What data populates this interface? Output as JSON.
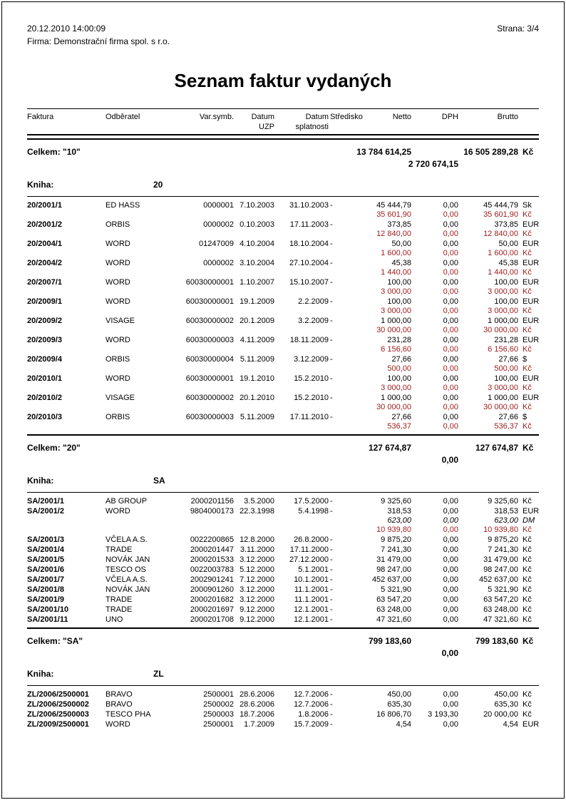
{
  "meta": {
    "datetime": "20.12.2010  14:00:09",
    "company": "Firma: Demonstrační firma spol. s r.o.",
    "page_label": "Strana: 3/4"
  },
  "title": "Seznam faktur vydaných",
  "colors": {
    "accent_red": "#9E1B1B",
    "text": "#000000"
  },
  "table": {
    "headers": {
      "faktura": "Faktura",
      "odberatel": "Odběratel",
      "varsymb": "Var.symb.",
      "datum1": "Datum",
      "datum1b": "UZP",
      "datum2": "Datum",
      "datum2b": "splatnosti",
      "stredisko": "Středisko",
      "netto": "Netto",
      "dph": "DPH",
      "brutto": "Brutto"
    },
    "blocks": [
      {
        "type": "celkem",
        "label": "Celkem:",
        "book": "\"10\"",
        "netto": "13 784 614,25",
        "brutto": "16 505 289,28",
        "curr": "Kč",
        "line2": "2 720 674,15",
        "rule_above": false
      },
      {
        "type": "kniha",
        "label": "Kniha:",
        "value": "20"
      },
      {
        "type": "rows",
        "rows": [
          {
            "faktura": "20/2001/1",
            "odberatel": "ED HASS",
            "varsymb": "0000001",
            "uzp": "7.10.2003",
            "splatnost": "31.10.2003",
            "stredisko": "-",
            "lines": [
              {
                "netto": "45 444,79",
                "dph": "0,00",
                "brutto": "45 444,79",
                "curr": "Sk",
                "style": "fx"
              },
              {
                "netto": "35 601,90",
                "dph": "0,00",
                "brutto": "35 601,90",
                "curr": "Kč",
                "style": "red"
              }
            ]
          },
          {
            "faktura": "20/2001/2",
            "odberatel": "ORBIS",
            "varsymb": "0000002",
            "uzp": "0.10.2003",
            "splatnost": "17.11.2003",
            "stredisko": "-",
            "lines": [
              {
                "netto": "373,85",
                "dph": "0,00",
                "brutto": "373,85",
                "curr": "EUR",
                "style": "fx"
              },
              {
                "netto": "12 840,00",
                "dph": "0,00",
                "brutto": "12 840,00",
                "curr": "Kč",
                "style": "red"
              }
            ]
          },
          {
            "faktura": "20/2004/1",
            "odberatel": "WORD",
            "varsymb": "01247009",
            "uzp": "4.10.2004",
            "splatnost": "18.10.2004",
            "stredisko": "-",
            "lines": [
              {
                "netto": "50,00",
                "dph": "0,00",
                "brutto": "50,00",
                "curr": "EUR",
                "style": "fx"
              },
              {
                "netto": "1 600,00",
                "dph": "0,00",
                "brutto": "1 600,00",
                "curr": "Kč",
                "style": "red"
              }
            ]
          },
          {
            "faktura": "20/2004/2",
            "odberatel": "WORD",
            "varsymb": "0000002",
            "uzp": "3.10.2004",
            "splatnost": "27.10.2004",
            "stredisko": "-",
            "lines": [
              {
                "netto": "45,38",
                "dph": "0,00",
                "brutto": "45,38",
                "curr": "EUR",
                "style": "fx"
              },
              {
                "netto": "1 440,00",
                "dph": "0,00",
                "brutto": "1 440,00",
                "curr": "Kč",
                "style": "red"
              }
            ]
          },
          {
            "faktura": "20/2007/1",
            "odberatel": "WORD",
            "varsymb": "60030000001",
            "uzp": "1.10.2007",
            "splatnost": "15.10.2007",
            "stredisko": "-",
            "lines": [
              {
                "netto": "100,00",
                "dph": "0,00",
                "brutto": "100,00",
                "curr": "EUR",
                "style": "fx"
              },
              {
                "netto": "3 000,00",
                "dph": "0,00",
                "brutto": "3 000,00",
                "curr": "Kč",
                "style": "red"
              }
            ]
          },
          {
            "faktura": "20/2009/1",
            "odberatel": "WORD",
            "varsymb": "60030000001",
            "uzp": "19.1.2009",
            "splatnost": "2.2.2009",
            "stredisko": "-",
            "lines": [
              {
                "netto": "100,00",
                "dph": "0,00",
                "brutto": "100,00",
                "curr": "EUR",
                "style": "fx"
              },
              {
                "netto": "3 000,00",
                "dph": "0,00",
                "brutto": "3 000,00",
                "curr": "Kč",
                "style": "red"
              }
            ]
          },
          {
            "faktura": "20/2009/2",
            "odberatel": "VISAGE",
            "varsymb": "60030000002",
            "uzp": "20.1.2009",
            "splatnost": "3.2.2009",
            "stredisko": "-",
            "lines": [
              {
                "netto": "1 000,00",
                "dph": "0,00",
                "brutto": "1 000,00",
                "curr": "EUR",
                "style": "fx"
              },
              {
                "netto": "30 000,00",
                "dph": "0,00",
                "brutto": "30 000,00",
                "curr": "Kč",
                "style": "red"
              }
            ]
          },
          {
            "faktura": "20/2009/3",
            "odberatel": "WORD",
            "varsymb": "60030000003",
            "uzp": "4.11.2009",
            "splatnost": "18.11.2009",
            "stredisko": "-",
            "lines": [
              {
                "netto": "231,28",
                "dph": "0,00",
                "brutto": "231,28",
                "curr": "EUR",
                "style": "fx"
              },
              {
                "netto": "6 156,60",
                "dph": "0,00",
                "brutto": "6 156,60",
                "curr": "Kč",
                "style": "red"
              }
            ]
          },
          {
            "faktura": "20/2009/4",
            "odberatel": "ORBIS",
            "varsymb": "60030000004",
            "uzp": "5.11.2009",
            "splatnost": "3.12.2009",
            "stredisko": "-",
            "lines": [
              {
                "netto": "27,66",
                "dph": "0,00",
                "brutto": "27,66",
                "curr": "$",
                "style": "fx"
              },
              {
                "netto": "500,00",
                "dph": "0,00",
                "brutto": "500,00",
                "curr": "Kč",
                "style": "red"
              }
            ]
          },
          {
            "faktura": "20/2010/1",
            "odberatel": "WORD",
            "varsymb": "60030000001",
            "uzp": "19.1.2010",
            "splatnost": "15.2.2010",
            "stredisko": "-",
            "lines": [
              {
                "netto": "100,00",
                "dph": "0,00",
                "brutto": "100,00",
                "curr": "EUR",
                "style": "fx"
              },
              {
                "netto": "3 000,00",
                "dph": "0,00",
                "brutto": "3 000,00",
                "curr": "Kč",
                "style": "red"
              }
            ]
          },
          {
            "faktura": "20/2010/2",
            "odberatel": "VISAGE",
            "varsymb": "60030000002",
            "uzp": "20.1.2010",
            "splatnost": "15.2.2010",
            "stredisko": "-",
            "lines": [
              {
                "netto": "1 000,00",
                "dph": "0,00",
                "brutto": "1 000,00",
                "curr": "EUR",
                "style": "fx"
              },
              {
                "netto": "30 000,00",
                "dph": "0,00",
                "brutto": "30 000,00",
                "curr": "Kč",
                "style": "red"
              }
            ]
          },
          {
            "faktura": "20/2010/3",
            "odberatel": "ORBIS",
            "varsymb": "60030000003",
            "uzp": "5.11.2009",
            "splatnost": "17.11.2010",
            "stredisko": "-",
            "lines": [
              {
                "netto": "27,66",
                "dph": "0,00",
                "brutto": "27,66",
                "curr": "$",
                "style": "fx"
              },
              {
                "netto": "536,37",
                "dph": "0,00",
                "brutto": "536,37",
                "curr": "Kč",
                "style": "red"
              }
            ]
          }
        ]
      },
      {
        "type": "celkem",
        "label": "Celkem:",
        "book": "\"20\"",
        "netto": "127 674,87",
        "brutto": "127 674,87",
        "curr": "Kč",
        "line2": "0,00",
        "rule_above": true
      },
      {
        "type": "kniha",
        "label": "Kniha:",
        "value": "SA"
      },
      {
        "type": "rows",
        "rows": [
          {
            "faktura": "SA/2001/1",
            "odberatel": "AB GROUP",
            "varsymb": "2000201156",
            "uzp": "3.5.2000",
            "splatnost": "17.5.2000",
            "stredisko": "-",
            "lines": [
              {
                "netto": "9 325,60",
                "dph": "0,00",
                "brutto": "9 325,60",
                "curr": "Kč",
                "style": "plain"
              }
            ]
          },
          {
            "faktura": "SA/2001/2",
            "odberatel": "WORD",
            "varsymb": "9804000173",
            "uzp": "22.3.1998",
            "splatnost": "5.4.1998",
            "stredisko": "-",
            "lines": [
              {
                "netto": "318,53",
                "dph": "0,00",
                "brutto": "318,53",
                "curr": "EUR",
                "style": "fx"
              },
              {
                "netto": "623,00",
                "dph": "0,00",
                "brutto": "623,00",
                "curr": "DM",
                "style": "dm"
              },
              {
                "netto": "10 939,80",
                "dph": "0,00",
                "brutto": "10 939,80",
                "curr": "Kč",
                "style": "red"
              }
            ]
          },
          {
            "faktura": "SA/2001/3",
            "odberatel": "VČELA A.S.",
            "varsymb": "0022200865",
            "uzp": "12.8.2000",
            "splatnost": "26.8.2000",
            "stredisko": "-",
            "lines": [
              {
                "netto": "9 875,20",
                "dph": "0,00",
                "brutto": "9 875,20",
                "curr": "Kč",
                "style": "plain"
              }
            ]
          },
          {
            "faktura": "SA/2001/4",
            "odberatel": "TRADE",
            "varsymb": "2000201447",
            "uzp": "3.11.2000",
            "splatnost": "17.11.2000",
            "stredisko": "-",
            "lines": [
              {
                "netto": "7 241,30",
                "dph": "0,00",
                "brutto": "7 241,30",
                "curr": "Kč",
                "style": "plain"
              }
            ]
          },
          {
            "faktura": "SA/2001/5",
            "odberatel": "NOVÁK JAN",
            "varsymb": "2000201533",
            "uzp": "3.12.2000",
            "splatnost": "27.12.2000",
            "stredisko": "-",
            "lines": [
              {
                "netto": "31 479,00",
                "dph": "0,00",
                "brutto": "31 479,00",
                "curr": "Kč",
                "style": "plain"
              }
            ]
          },
          {
            "faktura": "SA/2001/6",
            "odberatel": "TESCO OS",
            "varsymb": "0022003783",
            "uzp": "5.12.2000",
            "splatnost": "5.1.2001",
            "stredisko": "-",
            "lines": [
              {
                "netto": "98 247,00",
                "dph": "0,00",
                "brutto": "98 247,00",
                "curr": "Kč",
                "style": "plain"
              }
            ]
          },
          {
            "faktura": "SA/2001/7",
            "odberatel": "VČELA A.S.",
            "varsymb": "2002901241",
            "uzp": "7.12.2000",
            "splatnost": "10.1.2001",
            "stredisko": "-",
            "lines": [
              {
                "netto": "452 637,00",
                "dph": "0,00",
                "brutto": "452 637,00",
                "curr": "Kč",
                "style": "plain"
              }
            ]
          },
          {
            "faktura": "SA/2001/8",
            "odberatel": "NOVÁK JAN",
            "varsymb": "2000901260",
            "uzp": "3.12.2000",
            "splatnost": "11.1.2001",
            "stredisko": "-",
            "lines": [
              {
                "netto": "5 321,90",
                "dph": "0,00",
                "brutto": "5 321,90",
                "curr": "Kč",
                "style": "plain"
              }
            ]
          },
          {
            "faktura": "SA/2001/9",
            "odberatel": "TRADE",
            "varsymb": "2000201682",
            "uzp": "3.12.2000",
            "splatnost": "11.1.2001",
            "stredisko": "-",
            "lines": [
              {
                "netto": "63 547,20",
                "dph": "0,00",
                "brutto": "63 547,20",
                "curr": "Kč",
                "style": "plain"
              }
            ]
          },
          {
            "faktura": "SA/2001/10",
            "odberatel": "TRADE",
            "varsymb": "2000201697",
            "uzp": "9.12.2000",
            "splatnost": "12.1.2001",
            "stredisko": "-",
            "lines": [
              {
                "netto": "63 248,00",
                "dph": "0,00",
                "brutto": "63 248,00",
                "curr": "Kč",
                "style": "plain"
              }
            ]
          },
          {
            "faktura": "SA/2001/11",
            "odberatel": "UNO",
            "varsymb": "2000201708",
            "uzp": "9.12.2000",
            "splatnost": "12.1.2001",
            "stredisko": "-",
            "lines": [
              {
                "netto": "47 321,60",
                "dph": "0,00",
                "brutto": "47 321,60",
                "curr": "Kč",
                "style": "plain"
              }
            ]
          }
        ]
      },
      {
        "type": "celkem",
        "label": "Celkem:",
        "book": "\"SA\"",
        "netto": "799 183,60",
        "brutto": "799 183,60",
        "curr": "Kč",
        "line2": "0,00",
        "rule_above": true
      },
      {
        "type": "kniha",
        "label": "Kniha:",
        "value": "ZL"
      },
      {
        "type": "rows",
        "rows": [
          {
            "faktura": "ZL/2006/2500001",
            "odberatel": "BRAVO",
            "varsymb": "2500001",
            "uzp": "28.6.2006",
            "splatnost": "12.7.2006",
            "stredisko": "-",
            "lines": [
              {
                "netto": "450,00",
                "dph": "0,00",
                "brutto": "450,00",
                "curr": "Kč",
                "style": "plain"
              }
            ]
          },
          {
            "faktura": "ZL/2006/2500002",
            "odberatel": "BRAVO",
            "varsymb": "2500002",
            "uzp": "28.6.2006",
            "splatnost": "12.7.2006",
            "stredisko": "-",
            "lines": [
              {
                "netto": "635,30",
                "dph": "0,00",
                "brutto": "635,30",
                "curr": "Kč",
                "style": "plain"
              }
            ]
          },
          {
            "faktura": "ZL/2006/2500003",
            "odberatel": "TESCO PHA",
            "varsymb": "2500003",
            "uzp": "18.7.2006",
            "splatnost": "1.8.2006",
            "stredisko": "-",
            "lines": [
              {
                "netto": "16 806,70",
                "dph": "3 193,30",
                "brutto": "20 000,00",
                "curr": "Kč",
                "style": "plain"
              }
            ]
          },
          {
            "faktura": "ZL/2009/2500001",
            "odberatel": "WORD",
            "varsymb": "2500001",
            "uzp": "1.7.2009",
            "splatnost": "15.7.2009",
            "stredisko": "-",
            "lines": [
              {
                "netto": "4,54",
                "dph": "0,00",
                "brutto": "4,54",
                "curr": "EUR",
                "style": "plain"
              }
            ]
          }
        ]
      }
    ]
  }
}
